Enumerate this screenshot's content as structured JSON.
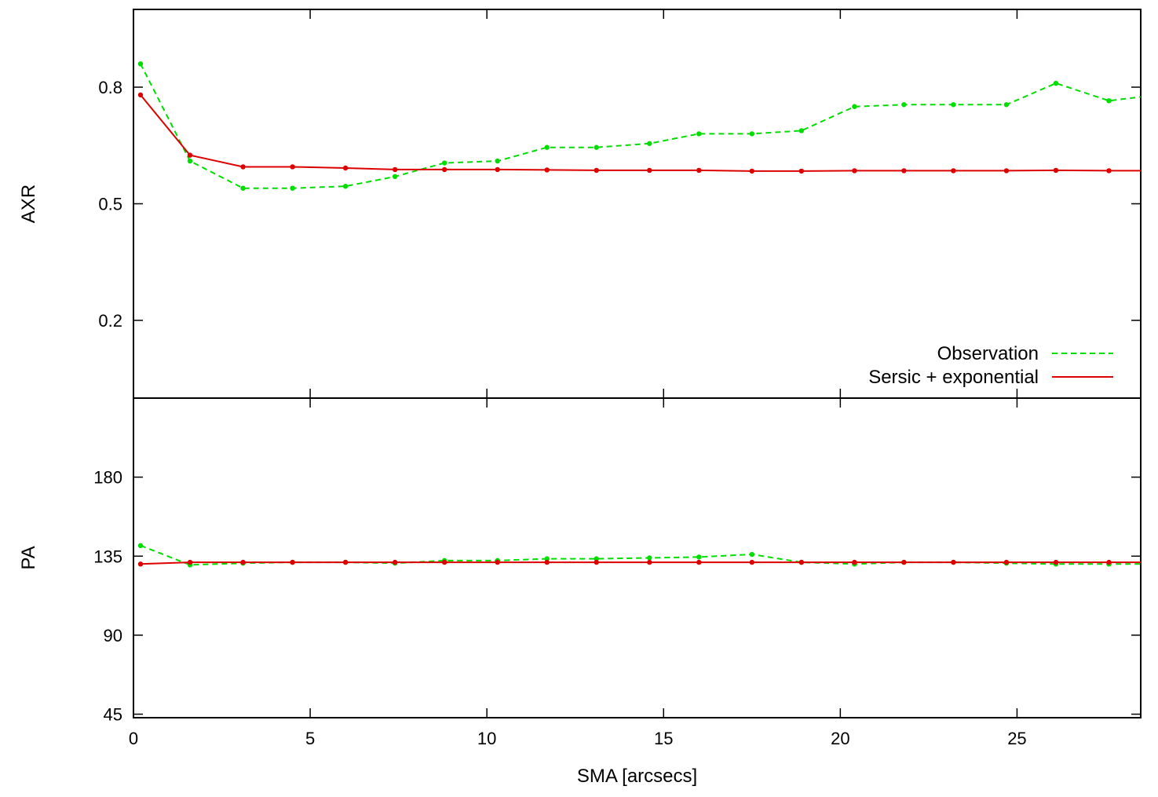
{
  "chart_data": [
    {
      "type": "line",
      "panel": "top",
      "xlabel": "",
      "ylabel": "AXR",
      "xlim": [
        0,
        28.5
      ],
      "ylim": [
        0,
        1.0
      ],
      "xticks": [
        0,
        5,
        10,
        15,
        20,
        25
      ],
      "yticks": [
        0.2,
        0.5,
        0.8
      ],
      "ytick_labels": [
        "0.2",
        "0.5",
        "0.8"
      ],
      "series": [
        {
          "name": "Observation",
          "style": "dashed",
          "color": "#00dd00",
          "x": [
            0.2,
            1.6,
            3.1,
            4.5,
            6.0,
            7.4,
            8.8,
            10.3,
            11.7,
            13.1,
            14.6,
            16.0,
            17.5,
            18.9,
            20.4,
            21.8,
            23.2,
            24.7,
            26.1,
            27.6,
            28.5
          ],
          "y": [
            0.86,
            0.61,
            0.54,
            0.54,
            0.545,
            0.57,
            0.605,
            0.61,
            0.645,
            0.645,
            0.655,
            0.68,
            0.68,
            0.688,
            0.75,
            0.755,
            0.755,
            0.755,
            0.81,
            0.765,
            0.775
          ]
        },
        {
          "name": "Sersic + exponential",
          "style": "solid",
          "color": "#dd0000",
          "x": [
            0.2,
            1.6,
            3.1,
            4.5,
            6.0,
            7.4,
            8.8,
            10.3,
            11.7,
            13.1,
            14.6,
            16.0,
            17.5,
            18.9,
            20.4,
            21.8,
            23.2,
            24.7,
            26.1,
            27.6,
            28.5
          ],
          "y": [
            0.78,
            0.625,
            0.595,
            0.595,
            0.592,
            0.588,
            0.588,
            0.588,
            0.587,
            0.586,
            0.586,
            0.586,
            0.584,
            0.584,
            0.585,
            0.585,
            0.585,
            0.585,
            0.586,
            0.585,
            0.585
          ]
        }
      ],
      "legend": "bottom-right"
    },
    {
      "type": "line",
      "panel": "bottom",
      "xlabel": "SMA [arcsecs]",
      "ylabel": "PA",
      "xlim": [
        0,
        28.5
      ],
      "ylim": [
        43,
        225
      ],
      "xticks": [
        0,
        5,
        10,
        15,
        20,
        25
      ],
      "yticks": [
        45,
        90,
        135,
        180
      ],
      "ytick_labels": [
        "45",
        "90",
        "135",
        "180"
      ],
      "series": [
        {
          "name": "Observation",
          "style": "dashed",
          "color": "#00dd00",
          "x": [
            0.2,
            1.6,
            3.1,
            4.5,
            6.0,
            7.4,
            8.8,
            10.3,
            11.7,
            13.1,
            14.6,
            16.0,
            17.5,
            18.9,
            20.4,
            21.8,
            23.2,
            24.7,
            26.1,
            27.6,
            28.5
          ],
          "y": [
            141,
            130,
            131,
            131.5,
            131.5,
            131,
            132.5,
            132.5,
            133.5,
            133.5,
            134,
            134.5,
            136,
            131.5,
            130.5,
            131.5,
            131.5,
            131,
            130.5,
            130.5,
            130.5
          ]
        },
        {
          "name": "Sersic + exponential",
          "style": "solid",
          "color": "#dd0000",
          "x": [
            0.2,
            1.6,
            3.1,
            4.5,
            6.0,
            7.4,
            8.8,
            10.3,
            11.7,
            13.1,
            14.6,
            16.0,
            17.5,
            18.9,
            20.4,
            21.8,
            23.2,
            24.7,
            26.1,
            27.6,
            28.5
          ],
          "y": [
            130.5,
            131.5,
            131.5,
            131.5,
            131.5,
            131.5,
            131.5,
            131.5,
            131.5,
            131.5,
            131.5,
            131.5,
            131.5,
            131.5,
            131.5,
            131.5,
            131.5,
            131.5,
            131.5,
            131.5,
            131.5
          ]
        }
      ]
    }
  ]
}
